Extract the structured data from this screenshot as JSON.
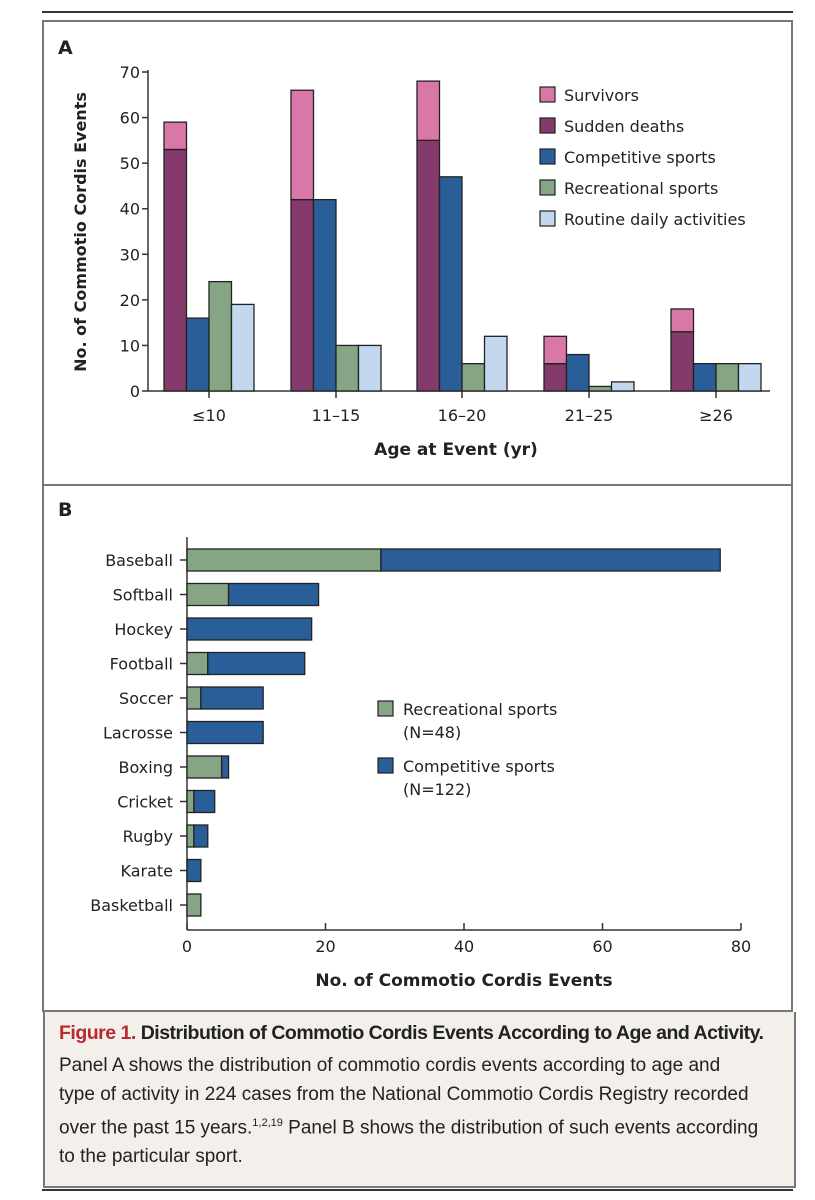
{
  "colors": {
    "survivors": "#d977a8",
    "sudden_deaths": "#843a6a",
    "competitive": "#2a5e99",
    "recreational": "#86a585",
    "routine": "#c3d8ee",
    "caption_accent": "#b82a30"
  },
  "chart_data": [
    {
      "panel": "A",
      "type": "bar",
      "stacked_first_bar": true,
      "categories": [
        "≤10",
        "11–15",
        "16–20",
        "21–25",
        "≥26"
      ],
      "series": [
        {
          "name": "Survivors",
          "values": [
            6,
            24,
            13,
            6,
            5
          ]
        },
        {
          "name": "Sudden deaths",
          "values": [
            53,
            42,
            55,
            6,
            13
          ]
        },
        {
          "name": "Competitive sports",
          "values": [
            16,
            42,
            47,
            8,
            6
          ]
        },
        {
          "name": "Recreational sports",
          "values": [
            24,
            10,
            6,
            1,
            6
          ]
        },
        {
          "name": "Routine daily activities",
          "values": [
            19,
            10,
            12,
            2,
            6
          ]
        }
      ],
      "note": "Survivors stacked on top of Sudden deaths",
      "xlabel": "Age at Event (yr)",
      "ylabel": "No. of Commotio Cordis Events",
      "ylim": [
        0,
        70
      ],
      "yticks": [
        0,
        10,
        20,
        30,
        40,
        50,
        60,
        70
      ],
      "grid": false,
      "legend_position": "top-right"
    },
    {
      "panel": "B",
      "type": "bar",
      "orientation": "horizontal",
      "stacked": true,
      "categories": [
        "Baseball",
        "Softball",
        "Hockey",
        "Football",
        "Soccer",
        "Lacrosse",
        "Boxing",
        "Cricket",
        "Rugby",
        "Karate",
        "Basketball"
      ],
      "series": [
        {
          "name": "Recreational sports",
          "label2": "(N=48)",
          "values": [
            28,
            6,
            0,
            3,
            2,
            0,
            5,
            1,
            1,
            0,
            2
          ]
        },
        {
          "name": "Competitive sports",
          "label2": "(N=122)",
          "values": [
            49,
            13,
            18,
            14,
            9,
            11,
            1,
            3,
            2,
            2,
            0
          ]
        }
      ],
      "xlabel": "No. of Commotio Cordis Events",
      "xlim": [
        0,
        80
      ],
      "xticks": [
        0,
        20,
        40,
        60,
        80
      ],
      "grid": false,
      "legend_position": "center-right"
    }
  ],
  "caption": {
    "figure_label": "Figure 1.",
    "title": "Distribution of Commotio Cordis Events According to Age and Activity.",
    "body_1": "Panel A shows the distribution of commotio cordis events according to age and type of activity in 224 cases from the National Commotio Cordis Regis­try recorded over the past 15 years.",
    "superscript": "1,2,19",
    "body_2": " Panel B shows the distribution of such events according to the particular sport."
  }
}
